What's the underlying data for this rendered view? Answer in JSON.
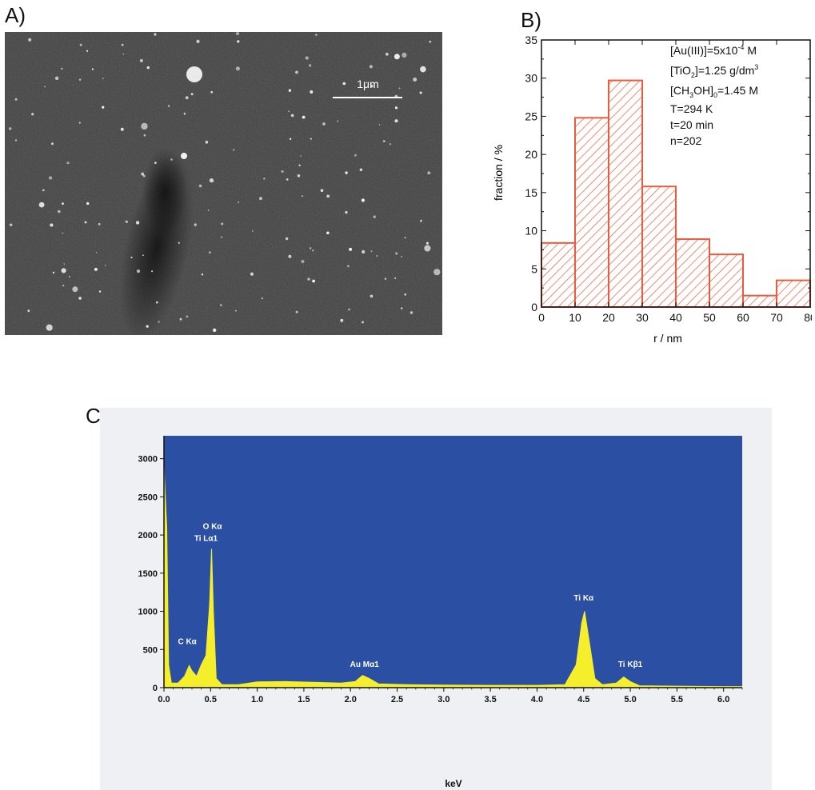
{
  "panels": {
    "a_label": "A)",
    "b_label": "B)",
    "c_label": "C)"
  },
  "sem_image": {
    "scale_bar_label": "1μm",
    "colors": {
      "background": "#3c3c3c",
      "particle": "#f2f2f2"
    }
  },
  "chart_data": [
    {
      "type": "bar",
      "panel": "B)",
      "xlabel": "r / nm",
      "ylabel": "fraction / %",
      "xlim": [
        0,
        80
      ],
      "ylim": [
        0,
        35
      ],
      "xticks": [
        0,
        10,
        20,
        30,
        40,
        50,
        60,
        70,
        80
      ],
      "yticks": [
        0,
        5,
        10,
        15,
        20,
        25,
        30,
        35
      ],
      "bins": [
        {
          "from": 0,
          "to": 10,
          "value": 8.4
        },
        {
          "from": 10,
          "to": 20,
          "value": 24.8
        },
        {
          "from": 20,
          "to": 30,
          "value": 29.7
        },
        {
          "from": 30,
          "to": 40,
          "value": 15.8
        },
        {
          "from": 40,
          "to": 50,
          "value": 8.9
        },
        {
          "from": 50,
          "to": 60,
          "value": 6.9
        },
        {
          "from": 60,
          "to": 70,
          "value": 1.5
        },
        {
          "from": 70,
          "to": 80,
          "value": 3.5
        }
      ],
      "fill": "hatched",
      "color": "#ee5a3c",
      "annotations": {
        "au_prefix": "[Au(III)]=5x10",
        "au_exp": "-4",
        "au_suffix": " M",
        "tio2_prefix": "[TiO",
        "tio2_sub": "2",
        "tio2_mid": "]=1.25 g/dm",
        "tio2_sup": "3",
        "ch3oh_prefix": "[CH",
        "ch3oh_sub": "3",
        "ch3oh_mid": "OH]",
        "ch3oh_sub2": "0",
        "ch3oh_suffix": "=1.45 M",
        "temperature": "T=294 K",
        "time": "t=20 min",
        "count": "n=202"
      }
    },
    {
      "type": "line",
      "panel": "C)",
      "xlabel": "keV",
      "ylabel": "",
      "xlim": [
        0,
        6.2
      ],
      "ylim": [
        0,
        3300
      ],
      "xticks": [
        "0.0",
        "0.5",
        "1.0",
        "1.5",
        "2.0",
        "2.5",
        "3.0",
        "3.5",
        "4.0",
        "4.5",
        "5.0",
        "5.5",
        "6.0"
      ],
      "yticks": [
        0,
        500,
        1000,
        1500,
        2000,
        2500,
        3000
      ],
      "background_color": "#2b4fa3",
      "spectrum_color": "#f5ee2a",
      "series": [
        {
          "values": [
            [
              0.0,
              2900
            ],
            [
              0.03,
              2100
            ],
            [
              0.05,
              300
            ],
            [
              0.08,
              60
            ],
            [
              0.15,
              60
            ],
            [
              0.22,
              150
            ],
            [
              0.27,
              290
            ],
            [
              0.3,
              220
            ],
            [
              0.35,
              150
            ],
            [
              0.4,
              300
            ],
            [
              0.45,
              420
            ],
            [
              0.49,
              1100
            ],
            [
              0.51,
              1820
            ],
            [
              0.53,
              1000
            ],
            [
              0.56,
              120
            ],
            [
              0.62,
              40
            ],
            [
              0.8,
              40
            ],
            [
              1.0,
              75
            ],
            [
              1.3,
              80
            ],
            [
              1.6,
              70
            ],
            [
              1.9,
              60
            ],
            [
              2.05,
              80
            ],
            [
              2.13,
              160
            ],
            [
              2.2,
              120
            ],
            [
              2.3,
              50
            ],
            [
              2.6,
              40
            ],
            [
              3.0,
              35
            ],
            [
              3.5,
              30
            ],
            [
              4.0,
              30
            ],
            [
              4.3,
              40
            ],
            [
              4.42,
              300
            ],
            [
              4.48,
              850
            ],
            [
              4.51,
              1000
            ],
            [
              4.56,
              600
            ],
            [
              4.62,
              120
            ],
            [
              4.7,
              40
            ],
            [
              4.85,
              60
            ],
            [
              4.93,
              140
            ],
            [
              5.0,
              80
            ],
            [
              5.1,
              25
            ],
            [
              5.5,
              20
            ],
            [
              6.0,
              15
            ],
            [
              6.2,
              15
            ]
          ]
        }
      ],
      "peak_labels": [
        {
          "text": "O Kα",
          "x": 0.52,
          "y": 2080
        },
        {
          "text": "Ti Lα1",
          "x": 0.45,
          "y": 1920
        },
        {
          "text": "C Kα",
          "x": 0.25,
          "y": 570
        },
        {
          "text": "Au Mα1",
          "x": 2.15,
          "y": 270
        },
        {
          "text": "Ti Kα",
          "x": 4.5,
          "y": 1140
        },
        {
          "text": "Ti Kβ1",
          "x": 5.0,
          "y": 270
        }
      ]
    }
  ]
}
